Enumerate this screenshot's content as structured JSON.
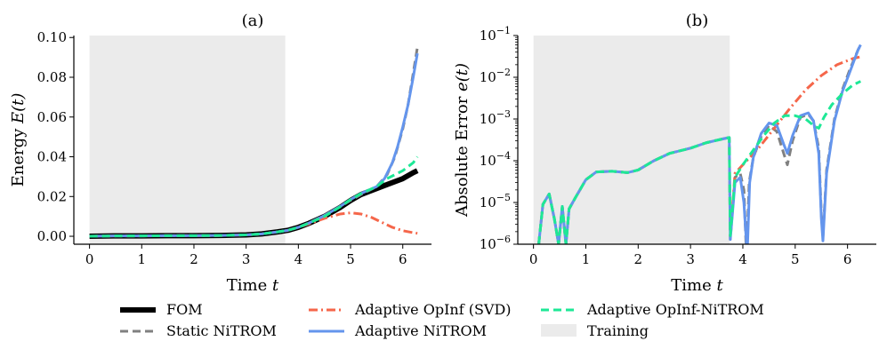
{
  "chart_data": [
    {
      "type": "line",
      "title": "(a)",
      "xlabel": "Time t",
      "ylabel": "Energy E(t)",
      "xlim": [
        -0.3,
        6.55
      ],
      "ylim": [
        -0.004,
        0.101
      ],
      "xticks": [
        0,
        1,
        2,
        3,
        4,
        5,
        6
      ],
      "xtick_labels": [
        "0",
        "1",
        "2",
        "3",
        "4",
        "5",
        "6"
      ],
      "yticks": [
        0.0,
        0.02,
        0.04,
        0.06,
        0.08,
        0.1
      ],
      "ytick_labels": [
        "0.00",
        "0.02",
        "0.04",
        "0.06",
        "0.08",
        "0.10"
      ],
      "training_region": [
        0,
        3.75
      ],
      "grid": false,
      "series": [
        {
          "name": "FOM",
          "color": "#000000",
          "style": "solid",
          "x": [
            0,
            0.5,
            1,
            1.5,
            2,
            2.5,
            3,
            3.3,
            3.6,
            3.8,
            4,
            4.2,
            4.5,
            4.8,
            5,
            5.2,
            5.5,
            5.7,
            6,
            6.2,
            6.28
          ],
          "y": [
            0.0,
            0.0002,
            0.0002,
            0.0003,
            0.0003,
            0.0004,
            0.0007,
            0.0012,
            0.0022,
            0.003,
            0.0045,
            0.0065,
            0.01,
            0.0145,
            0.018,
            0.021,
            0.024,
            0.026,
            0.029,
            0.032,
            0.033
          ]
        },
        {
          "name": "Static NiTROM",
          "color": "#808080",
          "style": "dashed",
          "x": [
            0,
            0.5,
            1,
            1.5,
            2,
            2.5,
            3,
            3.3,
            3.6,
            3.8,
            4,
            4.2,
            4.5,
            4.8,
            5,
            5.2,
            5.5,
            5.7,
            5.85,
            6,
            6.1,
            6.2,
            6.28
          ],
          "y": [
            0.0,
            0.0002,
            0.0002,
            0.0003,
            0.0003,
            0.0004,
            0.0007,
            0.0012,
            0.0022,
            0.003,
            0.0045,
            0.0067,
            0.0105,
            0.015,
            0.018,
            0.021,
            0.025,
            0.031,
            0.04,
            0.054,
            0.066,
            0.082,
            0.095
          ]
        },
        {
          "name": "Adaptive OpInf (SVD)",
          "color": "#F5664A",
          "style": "dashdot",
          "x": [
            0,
            0.5,
            1,
            1.5,
            2,
            2.5,
            3,
            3.3,
            3.6,
            3.8,
            4,
            4.2,
            4.5,
            4.8,
            5,
            5.2,
            5.4,
            5.6,
            5.8,
            6,
            6.2,
            6.28
          ],
          "y": [
            0.0,
            0.0002,
            0.0002,
            0.0003,
            0.0003,
            0.0004,
            0.0007,
            0.0012,
            0.0022,
            0.003,
            0.0045,
            0.0062,
            0.009,
            0.0112,
            0.0118,
            0.0112,
            0.0095,
            0.007,
            0.0045,
            0.0028,
            0.0018,
            0.0015
          ]
        },
        {
          "name": "Adaptive NiTROM",
          "color": "#6495ED",
          "style": "solid",
          "x": [
            0,
            0.5,
            1,
            1.5,
            2,
            2.5,
            3,
            3.3,
            3.6,
            3.8,
            4,
            4.2,
            4.5,
            4.8,
            5,
            5.2,
            5.5,
            5.65,
            5.8,
            5.9,
            6,
            6.1,
            6.2,
            6.28
          ],
          "y": [
            0.0,
            0.0002,
            0.0002,
            0.0003,
            0.0003,
            0.0004,
            0.0007,
            0.0012,
            0.0022,
            0.003,
            0.0045,
            0.0066,
            0.0104,
            0.015,
            0.0185,
            0.0215,
            0.025,
            0.029,
            0.037,
            0.045,
            0.055,
            0.066,
            0.08,
            0.092
          ]
        },
        {
          "name": "Adaptive OpInf-NiTROM",
          "color": "#1DE896",
          "style": "dashed",
          "x": [
            0,
            0.5,
            1,
            1.5,
            2,
            2.5,
            3,
            3.3,
            3.6,
            3.8,
            4,
            4.2,
            4.5,
            4.8,
            5,
            5.2,
            5.5,
            5.7,
            6,
            6.2,
            6.28
          ],
          "y": [
            0.0,
            0.0002,
            0.0002,
            0.0003,
            0.0003,
            0.0004,
            0.0007,
            0.0012,
            0.0022,
            0.003,
            0.0045,
            0.0066,
            0.01,
            0.0148,
            0.0185,
            0.0215,
            0.025,
            0.029,
            0.033,
            0.037,
            0.04
          ]
        }
      ]
    },
    {
      "type": "line",
      "title": "(b)",
      "xlabel": "Time t",
      "ylabel": "Absolute Error e(t)",
      "yscale": "log",
      "xlim": [
        -0.3,
        6.55
      ],
      "ylim": [
        1e-06,
        0.1
      ],
      "xticks": [
        0,
        1,
        2,
        3,
        4,
        5,
        6
      ],
      "xtick_labels": [
        "0",
        "1",
        "2",
        "3",
        "4",
        "5",
        "6"
      ],
      "yticks": [
        1e-06,
        1e-05,
        0.0001,
        0.001,
        0.01,
        0.1
      ],
      "ytick_labels": [
        "10",
        "10",
        "10",
        "10",
        "10",
        "10"
      ],
      "ytick_exponents": [
        "-6",
        "-5",
        "-4",
        "-3",
        "-2",
        "-1"
      ],
      "training_region": [
        0,
        3.75
      ],
      "grid": false,
      "series": [
        {
          "name": "Static NiTROM",
          "color": "#808080",
          "style": "dashed",
          "x": [
            0.1,
            0.18,
            0.3,
            0.4,
            0.48,
            0.55,
            0.62,
            0.68,
            0.8,
            1.0,
            1.2,
            1.5,
            1.8,
            2.0,
            2.3,
            2.6,
            3.0,
            3.3,
            3.6,
            3.74,
            3.76,
            3.85,
            3.95,
            4.02,
            4.06,
            4.08,
            4.12,
            4.2,
            4.35,
            4.5,
            4.65,
            4.78,
            4.85,
            4.95,
            5.1,
            5.25,
            5.35,
            5.45,
            5.5,
            5.53,
            5.6,
            5.75,
            5.9,
            6.05,
            6.2,
            6.25
          ],
          "y": [
            1e-06,
            9e-06,
            1.6e-05,
            4e-06,
            1e-06,
            8e-06,
            1e-06,
            7e-06,
            1.3e-05,
            3.5e-05,
            5.4e-05,
            5.6e-05,
            5.2e-05,
            6e-05,
            0.0001,
            0.00015,
            0.0002,
            0.00027,
            0.00033,
            0.00036,
            1.3e-06,
            4e-05,
            5e-05,
            2e-05,
            1e-06,
            1e-06,
            3e-05,
            0.00012,
            0.00038,
            0.0007,
            0.0005,
            0.00015,
            8e-05,
            0.0003,
            0.0011,
            0.0013,
            0.0009,
            0.0002,
            5e-06,
            1.5e-06,
            6e-05,
            0.001,
            0.005,
            0.016,
            0.045,
            0.06
          ]
        },
        {
          "name": "Adaptive OpInf (SVD)",
          "color": "#F5664A",
          "style": "dashdot",
          "x": [
            0.1,
            0.18,
            0.3,
            0.4,
            0.48,
            0.55,
            0.62,
            0.68,
            0.8,
            1.0,
            1.2,
            1.5,
            1.8,
            2.0,
            2.3,
            2.6,
            3.0,
            3.3,
            3.6,
            3.74,
            3.76,
            3.85,
            4.0,
            4.3,
            4.6,
            4.9,
            5.2,
            5.5,
            5.8,
            6.1,
            6.25
          ],
          "y": [
            1e-06,
            9e-06,
            1.6e-05,
            4e-06,
            1e-06,
            8e-06,
            1e-06,
            7e-06,
            1.3e-05,
            3.5e-05,
            5.4e-05,
            5.6e-05,
            5.2e-05,
            6e-05,
            0.0001,
            0.00015,
            0.0002,
            0.00027,
            0.00033,
            0.00036,
            1.5e-06,
            5e-05,
            8e-05,
            0.0002,
            0.0006,
            0.0018,
            0.005,
            0.011,
            0.02,
            0.028,
            0.031
          ]
        },
        {
          "name": "Adaptive NiTROM",
          "color": "#6495ED",
          "style": "solid",
          "x": [
            0.1,
            0.18,
            0.3,
            0.4,
            0.48,
            0.55,
            0.62,
            0.68,
            0.8,
            1.0,
            1.2,
            1.5,
            1.8,
            2.0,
            2.3,
            2.6,
            3.0,
            3.3,
            3.6,
            3.74,
            3.76,
            3.85,
            3.95,
            4.02,
            4.07,
            4.09,
            4.13,
            4.2,
            4.35,
            4.5,
            4.65,
            4.78,
            4.85,
            4.95,
            5.1,
            5.25,
            5.35,
            5.45,
            5.5,
            5.53,
            5.6,
            5.75,
            5.9,
            6.05,
            6.2,
            6.25
          ],
          "y": [
            1e-06,
            9e-06,
            1.6e-05,
            4e-06,
            1e-06,
            8e-06,
            1e-06,
            7e-06,
            1.3e-05,
            3.5e-05,
            5.4e-05,
            5.6e-05,
            5.2e-05,
            6e-05,
            0.0001,
            0.00015,
            0.0002,
            0.00027,
            0.00033,
            0.00036,
            1.3e-06,
            3e-05,
            4e-05,
            1e-05,
            1e-06,
            1e-06,
            3e-05,
            0.00012,
            0.00045,
            0.0008,
            0.0007,
            0.00025,
            0.00015,
            0.0004,
            0.0012,
            0.0014,
            0.0009,
            0.00015,
            4e-06,
            1.2e-06,
            5e-05,
            0.0009,
            0.0045,
            0.014,
            0.045,
            0.06
          ]
        },
        {
          "name": "Adaptive OpInf-NiTROM",
          "color": "#1DE896",
          "style": "dashed",
          "x": [
            0.1,
            0.18,
            0.3,
            0.4,
            0.48,
            0.55,
            0.62,
            0.68,
            0.8,
            1.0,
            1.2,
            1.5,
            1.8,
            2.0,
            2.3,
            2.6,
            3.0,
            3.3,
            3.6,
            3.74,
            3.76,
            3.85,
            4.0,
            4.2,
            4.4,
            4.6,
            4.8,
            5.0,
            5.2,
            5.35,
            5.45,
            5.55,
            5.7,
            5.9,
            6.1,
            6.25
          ],
          "y": [
            1e-06,
            9e-06,
            1.6e-05,
            4e-06,
            1e-06,
            8e-06,
            1e-06,
            7e-06,
            1.3e-05,
            3.5e-05,
            5.4e-05,
            5.6e-05,
            5.2e-05,
            6e-05,
            0.0001,
            0.00015,
            0.0002,
            0.00027,
            0.00033,
            0.00036,
            1.6e-06,
            4e-05,
            8e-05,
            0.00018,
            0.0004,
            0.0008,
            0.0012,
            0.0012,
            0.001,
            0.0007,
            0.0006,
            0.0011,
            0.0022,
            0.004,
            0.0065,
            0.008
          ]
        }
      ]
    }
  ],
  "legend": {
    "placement": "bottom",
    "items": [
      {
        "label": "FOM",
        "color": "#000000",
        "style": "thick"
      },
      {
        "label": "Static NiTROM",
        "color": "#808080",
        "style": "dashed"
      },
      {
        "label": "Adaptive OpInf (SVD)",
        "color": "#F5664A",
        "style": "dashdot"
      },
      {
        "label": "Adaptive NiTROM",
        "color": "#6495ED",
        "style": "solid"
      },
      {
        "label": "Adaptive OpInf-NiTROM",
        "color": "#1DE896",
        "style": "dashed"
      },
      {
        "label": "Training",
        "color": "#EBEBEB",
        "style": "patch"
      }
    ]
  }
}
